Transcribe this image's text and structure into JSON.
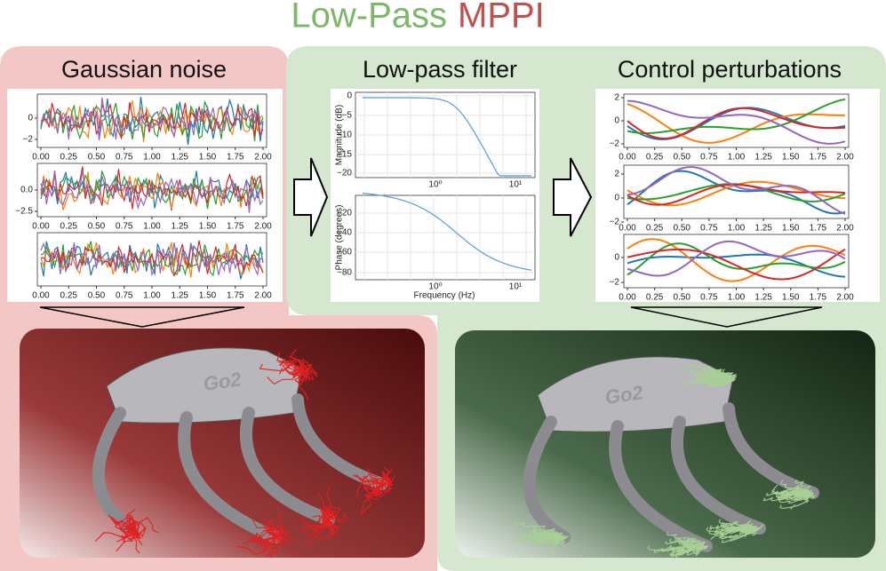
{
  "title": {
    "left": "Low-Pass",
    "right": "MPPI"
  },
  "noise": {
    "title": "Gaussian noise",
    "plots": [
      {
        "yticks": [
          "0",
          "−2"
        ],
        "xticks": [
          "0.00",
          "0.25",
          "0.50",
          "0.75",
          "1.00",
          "1.25",
          "1.50",
          "1.75",
          "2.00"
        ]
      },
      {
        "yticks": [
          "0.0",
          "−2.5"
        ],
        "xticks": [
          "0.00",
          "0.25",
          "0.50",
          "0.75",
          "1.00",
          "1.25",
          "1.50",
          "1.75",
          "2.00"
        ]
      },
      {
        "yticks": [],
        "xticks": [
          "0.00",
          "0.25",
          "0.50",
          "0.75",
          "1.00",
          "1.25",
          "1.50",
          "1.75",
          "2.00"
        ]
      }
    ]
  },
  "filter": {
    "title": "Low-pass filter",
    "magnitude": {
      "ylabel": "Magnitude (dB)",
      "yticks": [
        "0",
        "−5",
        "−10",
        "−15",
        "−20"
      ],
      "xticks": [
        "10⁰",
        "10¹"
      ]
    },
    "phase": {
      "ylabel": "Phase (degrees)",
      "yticks": [
        "−20",
        "−40",
        "−60",
        "−80"
      ],
      "xticks": [
        "10⁰",
        "10¹"
      ],
      "xlabel": "Frequency (Hz)"
    }
  },
  "perturb": {
    "title": "Control perturbations",
    "plots": [
      {
        "yticks": [
          "2",
          "0",
          "−2"
        ],
        "xticks": [
          "0.00",
          "0.25",
          "0.50",
          "0.75",
          "1.00",
          "1.25",
          "1.50",
          "1.75",
          "2.00"
        ]
      },
      {
        "yticks": [
          "2",
          "0",
          "−2"
        ],
        "xticks": [
          "0.00",
          "0.25",
          "0.50",
          "0.75",
          "1.00",
          "1.25",
          "1.50",
          "1.75",
          "2.00"
        ]
      },
      {
        "yticks": [
          "0",
          "−2"
        ],
        "xticks": [
          "0.00",
          "0.25",
          "0.50",
          "0.75",
          "1.00",
          "1.25",
          "1.50",
          "1.75",
          "2.00"
        ]
      }
    ]
  },
  "robot": {
    "left_label": "Go2",
    "right_label": "Go2"
  }
}
